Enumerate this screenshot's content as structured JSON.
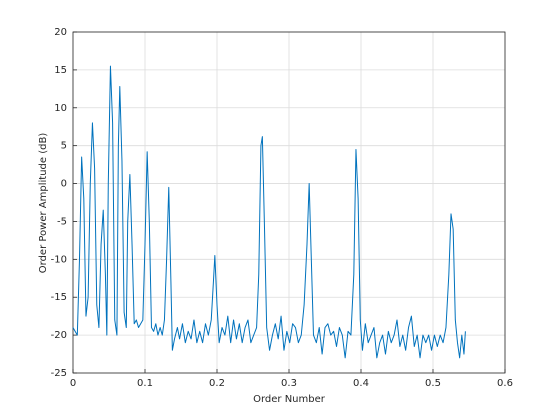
{
  "chart_data": {
    "type": "line",
    "xlabel": "Order Number",
    "ylabel": "Order Power Amplitude (dB)",
    "color": "#0072bd",
    "grid": true,
    "xlim": [
      0,
      0.6
    ],
    "xticks": [
      0,
      0.1,
      0.2,
      0.3,
      0.4,
      0.5,
      0.6
    ],
    "ylim": [
      -25,
      20
    ],
    "yticks": [
      -25,
      -20,
      -15,
      -10,
      -5,
      0,
      5,
      10,
      15,
      20
    ],
    "x": [
      0,
      0.003,
      0.006,
      0.009,
      0.012,
      0.015,
      0.018,
      0.021,
      0.024,
      0.027,
      0.03,
      0.033,
      0.036,
      0.039,
      0.042,
      0.045,
      0.047,
      0.049,
      0.052,
      0.055,
      0.058,
      0.061,
      0.063,
      0.065,
      0.068,
      0.071,
      0.074,
      0.076,
      0.079,
      0.082,
      0.085,
      0.088,
      0.091,
      0.094,
      0.097,
      0.1,
      0.103,
      0.106,
      0.109,
      0.112,
      0.115,
      0.118,
      0.121,
      0.124,
      0.127,
      0.13,
      0.133,
      0.136,
      0.138,
      0.141,
      0.145,
      0.148,
      0.152,
      0.156,
      0.16,
      0.164,
      0.168,
      0.172,
      0.176,
      0.18,
      0.184,
      0.188,
      0.192,
      0.195,
      0.197,
      0.2,
      0.203,
      0.207,
      0.211,
      0.215,
      0.219,
      0.223,
      0.227,
      0.231,
      0.235,
      0.239,
      0.243,
      0.247,
      0.251,
      0.255,
      0.258,
      0.261,
      0.263,
      0.266,
      0.269,
      0.273,
      0.277,
      0.281,
      0.285,
      0.289,
      0.293,
      0.297,
      0.301,
      0.305,
      0.309,
      0.313,
      0.317,
      0.321,
      0.325,
      0.328,
      0.331,
      0.334,
      0.338,
      0.342,
      0.346,
      0.35,
      0.354,
      0.358,
      0.362,
      0.366,
      0.37,
      0.374,
      0.378,
      0.382,
      0.386,
      0.39,
      0.393,
      0.396,
      0.399,
      0.402,
      0.406,
      0.41,
      0.414,
      0.418,
      0.422,
      0.426,
      0.43,
      0.434,
      0.438,
      0.442,
      0.446,
      0.45,
      0.454,
      0.458,
      0.462,
      0.466,
      0.47,
      0.474,
      0.478,
      0.482,
      0.486,
      0.49,
      0.494,
      0.498,
      0.502,
      0.506,
      0.51,
      0.514,
      0.518,
      0.522,
      0.525,
      0.528,
      0.531,
      0.534,
      0.537,
      0.54,
      0.543,
      0.545
    ],
    "values": [
      -19,
      -19.5,
      -20,
      -10,
      3.5,
      -2,
      -17.5,
      -15,
      0,
      8,
      2,
      -16,
      -19,
      -8,
      -3.5,
      -12,
      -20,
      0,
      15.5,
      8,
      -18,
      -20,
      5,
      12.8,
      3,
      -17,
      -19,
      -5,
      1.2,
      -8,
      -18.5,
      -18,
      -19,
      -18.5,
      -18,
      -8,
      4.2,
      -5,
      -19,
      -19.5,
      -18.5,
      -20,
      -19,
      -20,
      -18,
      -10,
      -0.5,
      -13,
      -22,
      -20.5,
      -19,
      -20.5,
      -18.5,
      -21,
      -19.5,
      -20.5,
      -18,
      -21,
      -19.5,
      -21,
      -18.5,
      -20,
      -18,
      -13,
      -9.5,
      -16,
      -21,
      -19,
      -20,
      -17.5,
      -21,
      -18,
      -20.5,
      -18.5,
      -21,
      -19,
      -18,
      -21,
      -20,
      -19,
      -12,
      5,
      6.2,
      -6,
      -19,
      -22,
      -20,
      -18.5,
      -20.5,
      -17.5,
      -22,
      -19.5,
      -21,
      -18.5,
      -19,
      -21,
      -20,
      -16,
      -8,
      0,
      -10,
      -20,
      -21,
      -19,
      -22.5,
      -19,
      -18.5,
      -20,
      -19.5,
      -21.5,
      -19,
      -20,
      -23,
      -19.5,
      -20,
      -12,
      4.5,
      -2,
      -18,
      -22,
      -18.5,
      -21,
      -20,
      -19,
      -23,
      -21,
      -20,
      -22.5,
      -19.5,
      -21,
      -20,
      -18,
      -21.5,
      -20,
      -22,
      -19,
      -17.5,
      -21.5,
      -20,
      -23,
      -20,
      -21,
      -20,
      -22,
      -20,
      -21.5,
      -20,
      -21,
      -19,
      -12,
      -4,
      -6,
      -18,
      -21,
      -23,
      -20,
      -22.5,
      -19.5
    ]
  }
}
